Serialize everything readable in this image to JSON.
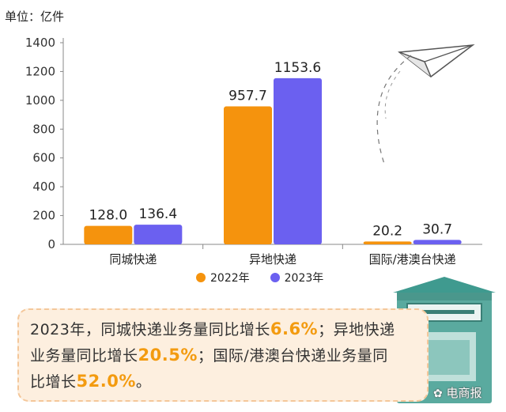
{
  "chart_data": {
    "type": "bar",
    "unit_label": "单位：亿件",
    "categories": [
      "同城快递",
      "异地快递",
      "国际/港澳台快递"
    ],
    "series": [
      {
        "name": "2022年",
        "color": "#f5930d",
        "values": [
          128.0,
          957.7,
          20.2
        ],
        "labels": [
          "128.0",
          "957.7",
          "20.2"
        ]
      },
      {
        "name": "2023年",
        "color": "#6b60f0",
        "values": [
          136.4,
          1153.6,
          30.7
        ],
        "labels": [
          "136.4",
          "1153.6",
          "30.7"
        ]
      }
    ],
    "ylim": [
      0,
      1400
    ],
    "yticks": [
      "0",
      "200",
      "400",
      "600",
      "800",
      "1000",
      "1200",
      "1400"
    ],
    "grid": false,
    "legend_position": "bottom"
  },
  "note": {
    "seg1": "2023年，同城快递业务量同比增长",
    "hl1": "6.6%",
    "seg2": "；异地快递业务量同比增长",
    "hl2": "20.5%",
    "seg3": "；国际/港澳台快递业务量同比增长",
    "hl3": "52.0%",
    "seg4": "。"
  },
  "watermark": {
    "icon": "paw-icon",
    "text": "电商报"
  }
}
